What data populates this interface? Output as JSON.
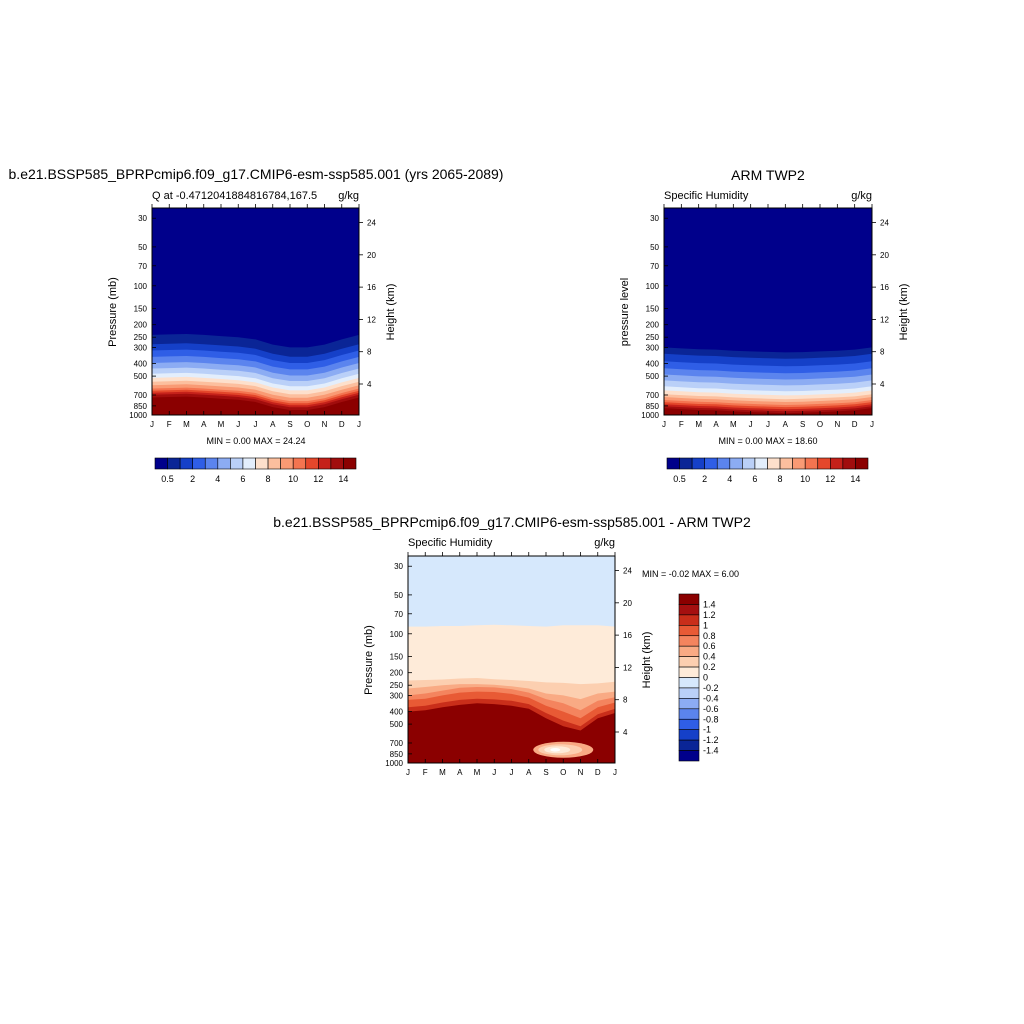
{
  "panels": [
    {
      "title": "b.e21.BSSP585_BPRPcmip6.f09_g17.CMIP6-esm-ssp585.001 (yrs 2065-2089)",
      "left_label": "Q at -0.4712041884816784,167.5",
      "right_label": "g/kg",
      "ylabel": "Pressure (mb)",
      "y2label": "Height (km)",
      "minmax": "MIN =   0.00 MAX =  24.24",
      "colorbar_labels": [
        "0.5",
        "2",
        "4",
        "6",
        "8",
        "10",
        "12",
        "14"
      ]
    },
    {
      "title": "ARM TWP2",
      "left_label": "Specific Humidity",
      "right_label": "g/kg",
      "ylabel": "pressure level",
      "y2label": "Height (km)",
      "minmax": "MIN =   0.00 MAX =  18.60",
      "colorbar_labels": [
        "0.5",
        "2",
        "4",
        "6",
        "8",
        "10",
        "12",
        "14"
      ]
    },
    {
      "title": "b.e21.BSSP585_BPRPcmip6.f09_g17.CMIP6-esm-ssp585.001 - ARM TWP2",
      "left_label": "Specific Humidity",
      "right_label": "g/kg",
      "ylabel": "Pressure (mb)",
      "y2label": "Height (km)",
      "minmax": "MIN =  -0.02 MAX =   6.00",
      "colorbar_labels": [
        "1.4",
        "1.2",
        "1",
        "0.8",
        "0.6",
        "0.4",
        "0.2",
        "0",
        "-0.2",
        "-0.4",
        "-0.6",
        "-0.8",
        "-1",
        "-1.2",
        "-1.4"
      ]
    }
  ],
  "axes": {
    "x_ticks": [
      "J",
      "F",
      "M",
      "A",
      "M",
      "J",
      "J",
      "A",
      "S",
      "O",
      "N",
      "D",
      "J"
    ],
    "pressure_ticks": [
      "30",
      "50",
      "70",
      "100",
      "150",
      "200",
      "250",
      "300",
      "400",
      "500",
      "700",
      "850",
      "1000"
    ],
    "height_ticks": [
      "24",
      "20",
      "16",
      "12",
      "8",
      "4"
    ]
  },
  "colors": {
    "abs_palette": [
      "#00008b",
      "#0a2596",
      "#1540c8",
      "#2f5ee6",
      "#5b84ee",
      "#8cacf3",
      "#bad0f8",
      "#e3eefc",
      "#fde0cc",
      "#fcbf9e",
      "#f99a74",
      "#f47450",
      "#e4472b",
      "#c5211a",
      "#a10d0d",
      "#8b0000"
    ],
    "diff_palette": [
      "#00008b",
      "#0a2596",
      "#1540c8",
      "#2f5ee6",
      "#5b84ee",
      "#8cacf3",
      "#bad0f8",
      "#d6e8fc",
      "#feebd9",
      "#fccfb0",
      "#f9aa84",
      "#f4845e",
      "#e85a35",
      "#c92e1a",
      "#a51010",
      "#8b0000"
    ]
  },
  "chart_data": [
    {
      "type": "heatmap",
      "title": "b.e21.BSSP585_BPRPcmip6.f09_g17.CMIP6-esm-ssp585.001 (yrs 2065-2089)",
      "units": "g/kg",
      "x": [
        "J",
        "F",
        "M",
        "A",
        "M",
        "J",
        "J",
        "A",
        "S",
        "O",
        "N",
        "D",
        "J"
      ],
      "y_pressure_mb": [
        30,
        50,
        70,
        100,
        150,
        200,
        250,
        300,
        400,
        500,
        700,
        850,
        1000
      ],
      "levels": [
        0.5,
        1,
        2,
        3,
        4,
        5,
        6,
        7,
        8,
        9,
        10,
        11,
        12,
        13,
        14
      ],
      "min": 0.0,
      "max": 24.24,
      "yscale": "log",
      "ylim": [
        1000,
        25
      ]
    },
    {
      "type": "heatmap",
      "title": "ARM TWP2",
      "units": "g/kg",
      "x": [
        "J",
        "F",
        "M",
        "A",
        "M",
        "J",
        "J",
        "A",
        "S",
        "O",
        "N",
        "D",
        "J"
      ],
      "y_pressure_mb": [
        30,
        50,
        70,
        100,
        150,
        200,
        250,
        300,
        400,
        500,
        700,
        850,
        1000
      ],
      "levels": [
        0.5,
        1,
        2,
        3,
        4,
        5,
        6,
        7,
        8,
        9,
        10,
        11,
        12,
        13,
        14
      ],
      "min": 0.0,
      "max": 18.6,
      "yscale": "log",
      "ylim": [
        1000,
        25
      ]
    },
    {
      "type": "heatmap",
      "title": "b.e21.BSSP585_BPRPcmip6.f09_g17.CMIP6-esm-ssp585.001 - ARM TWP2",
      "units": "g/kg",
      "x": [
        "J",
        "F",
        "M",
        "A",
        "M",
        "J",
        "J",
        "A",
        "S",
        "O",
        "N",
        "D",
        "J"
      ],
      "y_pressure_mb": [
        30,
        50,
        70,
        100,
        150,
        200,
        250,
        300,
        400,
        500,
        700,
        850,
        1000
      ],
      "levels": [
        -1.4,
        -1.2,
        -1.0,
        -0.8,
        -0.6,
        -0.4,
        -0.2,
        0,
        0.2,
        0.4,
        0.6,
        0.8,
        1.0,
        1.2,
        1.4
      ],
      "min": -0.02,
      "max": 6.0,
      "yscale": "log",
      "ylim": [
        1000,
        25
      ]
    }
  ]
}
